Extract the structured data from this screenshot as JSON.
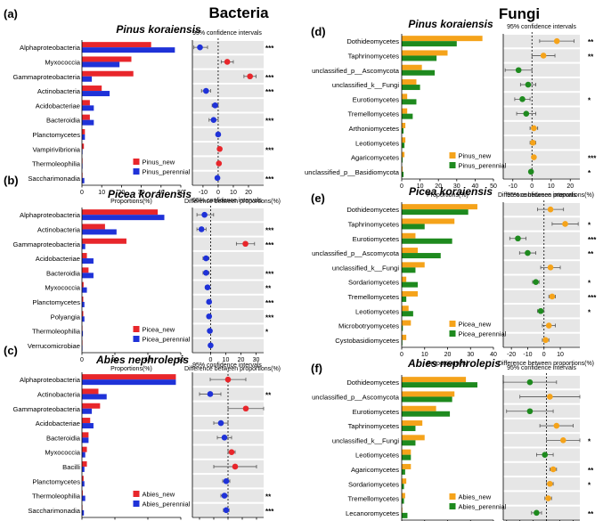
{
  "columns": {
    "left_title": "Bacteria",
    "right_title": "Fungi"
  },
  "common": {
    "proportions_label": "Proportions(%)",
    "difference_label": "Difference between proportions(%)",
    "ci_label": "95% confidence intervals"
  },
  "chart_data": [
    {
      "id": "a",
      "panel_label": "(a)",
      "species": "Pinus koraiensis",
      "type": "bar",
      "series": [
        {
          "name": "Pinus_new",
          "color": "#e8262b",
          "values": [
            35,
            25,
            26,
            10,
            4,
            4,
            1.5,
            1,
            0.3,
            0.3
          ]
        },
        {
          "name": "Pinus_perennial",
          "color": "#1f32d8",
          "values": [
            47,
            19,
            5,
            14,
            6,
            6,
            1.5,
            0.3,
            0.3,
            1.2
          ]
        }
      ],
      "categories": [
        "Alphaproteobacteria",
        "Myxococcia",
        "Gammaproteobacteria",
        "Actinobacteria",
        "Acidobacteriae",
        "Bacteroidia",
        "Planctomycetes",
        "Vampirivibrionia",
        "Thermoleophilia",
        "Saccharimonadia"
      ],
      "xlim": [
        0,
        50
      ],
      "xticks": [
        "0",
        "10",
        "20",
        "30",
        "40",
        "50"
      ],
      "diff": {
        "xlim": [
          -17,
          30
        ],
        "xticks": [
          "-10",
          "0",
          "10",
          "20"
        ],
        "points": [
          {
            "value": -12,
            "lo": -16,
            "hi": -7,
            "color": "#1f32d8"
          },
          {
            "value": 6,
            "lo": 2,
            "hi": 10,
            "color": "#e8262b"
          },
          {
            "value": 21,
            "lo": 17,
            "hi": 25,
            "color": "#e8262b"
          },
          {
            "value": -8,
            "lo": -11,
            "hi": -5,
            "color": "#1f32d8"
          },
          {
            "value": -2,
            "lo": -4,
            "hi": 0,
            "color": "#1f32d8"
          },
          {
            "value": -3,
            "lo": -6,
            "hi": 0,
            "color": "#1f32d8"
          },
          {
            "value": 0,
            "lo": -0.8,
            "hi": 0.8,
            "color": "#1f32d8"
          },
          {
            "value": 1,
            "lo": 0.2,
            "hi": 1.8,
            "color": "#e8262b"
          },
          {
            "value": 0.5,
            "lo": -0.3,
            "hi": 1.3,
            "color": "#e8262b"
          },
          {
            "value": -0.5,
            "lo": -1.3,
            "hi": 0.3,
            "color": "#1f32d8"
          }
        ],
        "sig": [
          "***",
          "",
          "***",
          "***",
          "",
          "***",
          "",
          "***",
          "",
          "***"
        ]
      }
    },
    {
      "id": "b",
      "panel_label": "(b)",
      "species": "Picea koraiensis",
      "type": "bar",
      "series": [
        {
          "name": "Picea_new",
          "color": "#e8262b",
          "values": [
            46,
            14,
            27,
            3,
            4,
            1,
            0.8,
            0.8,
            0.3,
            0.3
          ]
        },
        {
          "name": "Picea_perennial",
          "color": "#1f32d8",
          "values": [
            50,
            21,
            2,
            7,
            7,
            3,
            1.5,
            1.5,
            0.6,
            0.3
          ]
        }
      ],
      "categories": [
        "Alphaproteobacteria",
        "Actinobacteria",
        "Gammaproteobacteria",
        "Acidobacteriae",
        "Bacteroidia",
        "Myxococcia",
        "Planctomycetes",
        "Polyangia",
        "Thermoleophilia",
        "Verrucomicrobiae"
      ],
      "xlim": [
        0,
        60
      ],
      "xticks": [
        "0",
        "20",
        "40",
        "60"
      ],
      "diff": {
        "xlim": [
          -12,
          35
        ],
        "xticks": [
          "0",
          "10",
          "20",
          "30"
        ],
        "points": [
          {
            "value": -4,
            "lo": -9,
            "hi": 2,
            "color": "#1f32d8"
          },
          {
            "value": -6,
            "lo": -9,
            "hi": -3,
            "color": "#1f32d8"
          },
          {
            "value": 23,
            "lo": 17,
            "hi": 29,
            "color": "#e8262b"
          },
          {
            "value": -3,
            "lo": -5,
            "hi": -1,
            "color": "#1f32d8"
          },
          {
            "value": -3,
            "lo": -5,
            "hi": -1,
            "color": "#1f32d8"
          },
          {
            "value": -2,
            "lo": -3.5,
            "hi": -0.5,
            "color": "#1f32d8"
          },
          {
            "value": -1,
            "lo": -2,
            "hi": 0,
            "color": "#1f32d8"
          },
          {
            "value": -1,
            "lo": -2,
            "hi": 0,
            "color": "#1f32d8"
          },
          {
            "value": -0.5,
            "lo": -1.2,
            "hi": 0.2,
            "color": "#1f32d8"
          },
          {
            "value": 0,
            "lo": -0.6,
            "hi": 0.6,
            "color": "#1f32d8"
          }
        ],
        "sig": [
          "",
          "***",
          "***",
          "",
          "***",
          "**",
          "***",
          "***",
          "*",
          ""
        ]
      }
    },
    {
      "id": "c",
      "panel_label": "(c)",
      "species": "Abies nephrolepis",
      "type": "bar",
      "series": [
        {
          "name": "Abies_new",
          "color": "#e8262b",
          "values": [
            57,
            10,
            11,
            5,
            4,
            3,
            3,
            1,
            0.5,
            0.3
          ]
        },
        {
          "name": "Abies_perennial",
          "color": "#1f32d8",
          "values": [
            57,
            15,
            6,
            7,
            4,
            2,
            1.5,
            1.5,
            2,
            1.2
          ]
        }
      ],
      "categories": [
        "Alphaproteobacteria",
        "Actinobacteria",
        "Gammaproteobacteria",
        "Acidobacteriae",
        "Bacteroidia",
        "Myxococcia",
        "Bacilli",
        "Planctomycetes",
        "Thermoleophilia",
        "Saccharimonadia"
      ],
      "xlim": [
        0,
        60
      ],
      "xticks": [
        "0",
        "20",
        "40",
        "60"
      ],
      "diff": {
        "xlim": [
          -10,
          10
        ],
        "xticks": [
          "-8",
          "-4",
          "0",
          "4",
          "8"
        ],
        "points": [
          {
            "value": 0,
            "lo": -5,
            "hi": 5,
            "color": "#e8262b"
          },
          {
            "value": -5,
            "lo": -8,
            "hi": -2,
            "color": "#1f32d8"
          },
          {
            "value": 5,
            "lo": 0,
            "hi": 10,
            "color": "#e8262b"
          },
          {
            "value": -2,
            "lo": -4,
            "hi": 0,
            "color": "#1f32d8"
          },
          {
            "value": -1,
            "lo": -3,
            "hi": 1,
            "color": "#1f32d8"
          },
          {
            "value": 1,
            "lo": 0,
            "hi": 2,
            "color": "#e8262b"
          },
          {
            "value": 2,
            "lo": -4,
            "hi": 8,
            "color": "#e8262b"
          },
          {
            "value": -0.5,
            "lo": -1.5,
            "hi": 0.5,
            "color": "#1f32d8"
          },
          {
            "value": -1,
            "lo": -2,
            "hi": 0,
            "color": "#1f32d8"
          },
          {
            "value": -0.5,
            "lo": -1.3,
            "hi": 0.3,
            "color": "#1f32d8"
          }
        ],
        "sig": [
          "",
          "**",
          "",
          "",
          "",
          "",
          "",
          "",
          "**",
          "***"
        ]
      }
    },
    {
      "id": "d",
      "panel_label": "(d)",
      "species": "Pinus koraiensis",
      "type": "bar",
      "series": [
        {
          "name": "Pinus_new",
          "color": "#f5a31a",
          "values": [
            44,
            25,
            11,
            8,
            3,
            3,
            2,
            2,
            1.5,
            0.5
          ]
        },
        {
          "name": "Pinus_perennial",
          "color": "#1e8a1e",
          "values": [
            30,
            19,
            18,
            10,
            8,
            6,
            1,
            1.5,
            0.5,
            1
          ]
        }
      ],
      "categories": [
        "Dothideomycetes",
        "Taphrinomycetes",
        "unclassified_p__Ascomycota",
        "unclassified_k__Fungi",
        "Eurotiomycetes",
        "Tremellomycetes",
        "Arthoniomycetes",
        "Leotiomycetes",
        "Agaricomycetes",
        "unclassified_p__Basidiomycota"
      ],
      "xlim": [
        0,
        50
      ],
      "xticks": [
        "0",
        "10",
        "20",
        "30",
        "40",
        "50"
      ],
      "diff": {
        "xlim": [
          -15,
          25
        ],
        "xticks": [
          "-10",
          "0",
          "10",
          "20"
        ],
        "points": [
          {
            "value": 13,
            "lo": 4,
            "hi": 22,
            "color": "#f5a31a"
          },
          {
            "value": 6,
            "lo": 0,
            "hi": 12,
            "color": "#f5a31a"
          },
          {
            "value": -7,
            "lo": -14,
            "hi": 0,
            "color": "#1e8a1e"
          },
          {
            "value": -2,
            "lo": -6,
            "hi": 2,
            "color": "#1e8a1e"
          },
          {
            "value": -5,
            "lo": -9,
            "hi": -1,
            "color": "#1e8a1e"
          },
          {
            "value": -3,
            "lo": -8,
            "hi": 2,
            "color": "#1e8a1e"
          },
          {
            "value": 1,
            "lo": -1,
            "hi": 3,
            "color": "#f5a31a"
          },
          {
            "value": 0.5,
            "lo": -1,
            "hi": 2,
            "color": "#f5a31a"
          },
          {
            "value": 1,
            "lo": 0,
            "hi": 2,
            "color": "#f5a31a"
          },
          {
            "value": -0.5,
            "lo": -1.5,
            "hi": 0.5,
            "color": "#1e8a1e"
          }
        ],
        "sig": [
          "**",
          "**",
          "",
          "",
          "*",
          "",
          "",
          "",
          "***",
          "*"
        ]
      }
    },
    {
      "id": "e",
      "panel_label": "(e)",
      "species": "Picea koraiensis",
      "type": "bar",
      "series": [
        {
          "name": "Picea_new",
          "color": "#f5a31a",
          "values": [
            33,
            23,
            6,
            7,
            10,
            2,
            7,
            3,
            4,
            2
          ]
        },
        {
          "name": "Picea_perennial",
          "color": "#1e8a1e",
          "values": [
            29,
            10,
            22,
            17,
            6,
            7,
            2,
            5,
            0.5,
            0.3
          ]
        }
      ],
      "categories": [
        "Dothideomycetes",
        "Taphrinomycetes",
        "Eurotiomycetes",
        "unclassified_p__Ascomycota",
        "unclassified_k__Fungi",
        "Sordariomycetes",
        "Tremellomycetes",
        "Leotiomycetes",
        "Microbotryomycetes",
        "Cystobasidiomycetes"
      ],
      "xlim": [
        0,
        40
      ],
      "xticks": [
        "0",
        "10",
        "20",
        "30",
        "40"
      ],
      "diff": {
        "xlim": [
          -25,
          22
        ],
        "xticks": [
          "-20",
          "-10",
          "0",
          "10"
        ],
        "points": [
          {
            "value": 4,
            "lo": -4,
            "hi": 12,
            "color": "#f5a31a"
          },
          {
            "value": 13,
            "lo": 5,
            "hi": 21,
            "color": "#f5a31a"
          },
          {
            "value": -16,
            "lo": -21,
            "hi": -11,
            "color": "#1e8a1e"
          },
          {
            "value": -10,
            "lo": -15,
            "hi": -5,
            "color": "#1e8a1e"
          },
          {
            "value": 4,
            "lo": -2,
            "hi": 10,
            "color": "#f5a31a"
          },
          {
            "value": -5,
            "lo": -7,
            "hi": -3,
            "color": "#1e8a1e"
          },
          {
            "value": 5,
            "lo": 3,
            "hi": 7,
            "color": "#f5a31a"
          },
          {
            "value": -2,
            "lo": -4,
            "hi": 0,
            "color": "#1e8a1e"
          },
          {
            "value": 3,
            "lo": -1,
            "hi": 7,
            "color": "#f5a31a"
          },
          {
            "value": 1,
            "lo": -1,
            "hi": 3,
            "color": "#f5a31a"
          }
        ],
        "sig": [
          "",
          "*",
          "***",
          "**",
          "",
          "*",
          "***",
          "*",
          "",
          ""
        ]
      }
    },
    {
      "id": "f",
      "panel_label": "(f)",
      "species": "Abies nephrolepis",
      "type": "bar",
      "series": [
        {
          "name": "Abies_new",
          "color": "#f5a31a",
          "values": [
            28,
            23,
            15,
            9,
            10,
            4,
            4,
            2,
            1.5,
            0.3
          ]
        },
        {
          "name": "Abies_perennial",
          "color": "#1e8a1e",
          "values": [
            33,
            22,
            21,
            6,
            6,
            4,
            1.5,
            1,
            1,
            2.5
          ]
        }
      ],
      "categories": [
        "Dothideomycetes",
        "unclassified_p__Ascomycota",
        "Eurotiomycetes",
        "Taphrinomycetes",
        "unclassified_k__Fungi",
        "Leotiomycetes",
        "Agaricomycetes",
        "Sordariomycetes",
        "Tremellomycetes",
        "Lecanoromycetes"
      ],
      "xlim": [
        0,
        40
      ],
      "xticks": [
        "0",
        "10",
        "20",
        "30",
        "40"
      ],
      "diff": {
        "xlim": [
          -13,
          10
        ],
        "xticks": [
          "-12",
          "-8",
          "-4",
          "0",
          "4",
          "8"
        ],
        "points": [
          {
            "value": -5,
            "lo": -13,
            "hi": 3,
            "color": "#1e8a1e"
          },
          {
            "value": 1,
            "lo": -8,
            "hi": 10,
            "color": "#f5a31a"
          },
          {
            "value": -5,
            "lo": -12,
            "hi": 2,
            "color": "#1e8a1e"
          },
          {
            "value": 3,
            "lo": -2,
            "hi": 8,
            "color": "#f5a31a"
          },
          {
            "value": 5,
            "lo": 0,
            "hi": 10,
            "color": "#f5a31a"
          },
          {
            "value": -0.5,
            "lo": -3,
            "hi": 2,
            "color": "#1e8a1e"
          },
          {
            "value": 2,
            "lo": 1,
            "hi": 3,
            "color": "#f5a31a"
          },
          {
            "value": 1,
            "lo": 0,
            "hi": 2,
            "color": "#f5a31a"
          },
          {
            "value": 0.5,
            "lo": -0.5,
            "hi": 1.5,
            "color": "#f5a31a"
          },
          {
            "value": -3,
            "lo": -4.5,
            "hi": -1.5,
            "color": "#1e8a1e"
          }
        ],
        "sig": [
          "",
          "",
          "",
          "",
          "*",
          "",
          "**",
          "*",
          "",
          "**"
        ]
      }
    }
  ]
}
